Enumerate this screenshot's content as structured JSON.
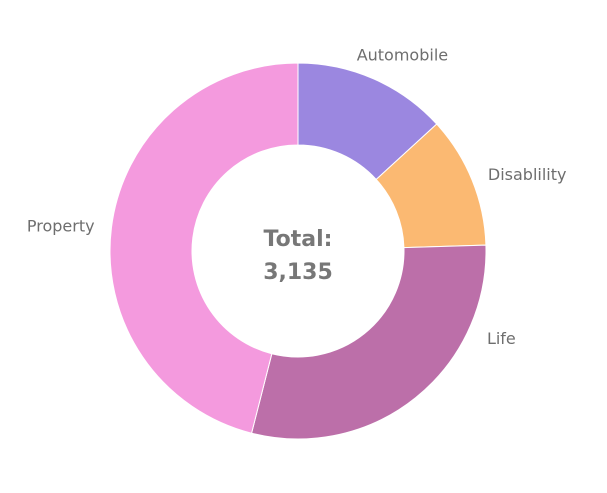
{
  "chart_data": {
    "type": "pie",
    "variant": "donut",
    "title": "",
    "center_label": {
      "line1": "Total:",
      "line2": "3,135"
    },
    "total": 3135,
    "slices": [
      {
        "label": "Automobile",
        "value": 414,
        "color": "#9b87e0"
      },
      {
        "label": "Disablility",
        "value": 354,
        "color": "#fbb972"
      },
      {
        "label": "Life",
        "value": 924,
        "color": "#bc6fa9"
      },
      {
        "label": "Property",
        "value": 1443,
        "color": "#f49ade"
      }
    ],
    "start_angle": "top, clockwise",
    "legend": "none, labels beside slices"
  }
}
